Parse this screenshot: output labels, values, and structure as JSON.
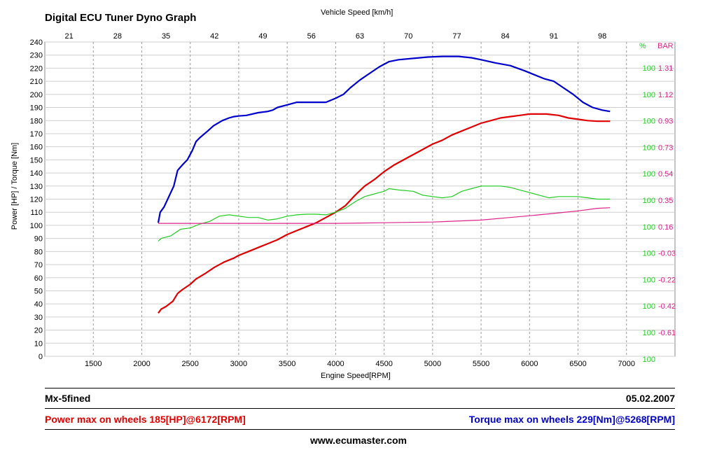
{
  "title": "Digital ECU Tuner Dyno Graph",
  "footer": {
    "car_name": "Mx-5fined",
    "date": "05.02.2007",
    "power_max": "Power max on wheels 185[HP]@6172[RPM]",
    "torque_max": "Torque max on wheels 229[Nm]@5268[RPM]",
    "website": "www.ecumaster.com"
  },
  "colors": {
    "power": "#e00000",
    "torque": "#0000cc",
    "pct": "#22cc22",
    "bar": "#dd2288"
  },
  "chart_data": {
    "type": "line",
    "grid": true,
    "x_axis": {
      "label": "Engine Speed[RPM]",
      "range": [
        1000,
        7500
      ],
      "ticks": [
        1500,
        2000,
        2500,
        3000,
        3500,
        4000,
        4500,
        5000,
        5500,
        6000,
        6500,
        7000
      ]
    },
    "top_axis": {
      "label": "Vehicle Speed [km/h]",
      "ticks": [
        "21",
        "28",
        "35",
        "42",
        "49",
        "56",
        "63",
        "70",
        "77",
        "84",
        "91",
        "98"
      ]
    },
    "y_axis": {
      "label": "Power [HP] / Torque [Nm]",
      "range": [
        0,
        240
      ],
      "ticks": [
        0,
        10,
        20,
        30,
        40,
        50,
        60,
        70,
        80,
        90,
        100,
        110,
        120,
        130,
        140,
        150,
        160,
        170,
        180,
        190,
        200,
        210,
        220,
        230,
        240
      ]
    },
    "right_axis": {
      "pct_unit": "%",
      "bar_unit": "BAR",
      "pct_ticks": [
        "100",
        "100",
        "100",
        "100",
        "100",
        "100",
        "100",
        "100",
        "100",
        "100",
        "100",
        "100"
      ],
      "bar_ticks": [
        "1.31",
        "1.12",
        "0.93",
        "0.73",
        "0.54",
        "0.35",
        "0.16",
        "-0.03",
        "-0.22",
        "-0.42",
        "-0.61"
      ]
    },
    "series": [
      {
        "key": "torque",
        "points": [
          [
            2170,
            102
          ],
          [
            2190,
            110
          ],
          [
            2230,
            114
          ],
          [
            2280,
            122
          ],
          [
            2330,
            130
          ],
          [
            2370,
            142
          ],
          [
            2430,
            147
          ],
          [
            2470,
            150
          ],
          [
            2520,
            157
          ],
          [
            2560,
            164
          ],
          [
            2600,
            167
          ],
          [
            2680,
            172
          ],
          [
            2740,
            176
          ],
          [
            2830,
            180
          ],
          [
            2900,
            182
          ],
          [
            2950,
            183
          ],
          [
            3000,
            183.5
          ],
          [
            3080,
            184
          ],
          [
            3200,
            186
          ],
          [
            3300,
            187
          ],
          [
            3350,
            188
          ],
          [
            3400,
            190
          ],
          [
            3500,
            192
          ],
          [
            3600,
            194
          ],
          [
            3700,
            194
          ],
          [
            3800,
            194
          ],
          [
            3900,
            194
          ],
          [
            4000,
            197
          ],
          [
            4080,
            200
          ],
          [
            4150,
            205
          ],
          [
            4250,
            211
          ],
          [
            4350,
            216
          ],
          [
            4450,
            221
          ],
          [
            4550,
            225
          ],
          [
            4650,
            226.5
          ],
          [
            4800,
            227.5
          ],
          [
            4950,
            228.5
          ],
          [
            5100,
            229
          ],
          [
            5268,
            229
          ],
          [
            5400,
            228
          ],
          [
            5500,
            226.5
          ],
          [
            5650,
            224
          ],
          [
            5800,
            222
          ],
          [
            5950,
            218
          ],
          [
            6050,
            215
          ],
          [
            6150,
            212
          ],
          [
            6250,
            210
          ],
          [
            6350,
            205
          ],
          [
            6450,
            200
          ],
          [
            6550,
            194
          ],
          [
            6650,
            190
          ],
          [
            6750,
            188
          ],
          [
            6830,
            187
          ]
        ]
      },
      {
        "key": "power",
        "points": [
          [
            2170,
            33
          ],
          [
            2200,
            36
          ],
          [
            2250,
            38
          ],
          [
            2320,
            42
          ],
          [
            2370,
            48
          ],
          [
            2420,
            51
          ],
          [
            2500,
            55
          ],
          [
            2560,
            59
          ],
          [
            2650,
            63
          ],
          [
            2750,
            68
          ],
          [
            2850,
            72
          ],
          [
            2950,
            75
          ],
          [
            3000,
            77
          ],
          [
            3100,
            80
          ],
          [
            3200,
            83
          ],
          [
            3300,
            86
          ],
          [
            3400,
            89
          ],
          [
            3500,
            93
          ],
          [
            3600,
            96
          ],
          [
            3700,
            99
          ],
          [
            3800,
            102
          ],
          [
            3900,
            106
          ],
          [
            4000,
            110
          ],
          [
            4100,
            115
          ],
          [
            4200,
            123
          ],
          [
            4300,
            130
          ],
          [
            4400,
            135
          ],
          [
            4500,
            141
          ],
          [
            4600,
            146
          ],
          [
            4700,
            150
          ],
          [
            4800,
            154
          ],
          [
            4900,
            158
          ],
          [
            5000,
            162
          ],
          [
            5100,
            165
          ],
          [
            5200,
            169
          ],
          [
            5300,
            172
          ],
          [
            5400,
            175
          ],
          [
            5500,
            178
          ],
          [
            5600,
            180
          ],
          [
            5700,
            182
          ],
          [
            5800,
            183
          ],
          [
            5900,
            184
          ],
          [
            6000,
            185
          ],
          [
            6172,
            185
          ],
          [
            6300,
            184
          ],
          [
            6400,
            182
          ],
          [
            6500,
            181
          ],
          [
            6600,
            180
          ],
          [
            6700,
            179.5
          ],
          [
            6830,
            179.5
          ]
        ]
      },
      {
        "key": "pct",
        "points": [
          [
            2170,
            88
          ],
          [
            2200,
            90
          ],
          [
            2300,
            92
          ],
          [
            2400,
            97
          ],
          [
            2500,
            98
          ],
          [
            2600,
            101
          ],
          [
            2700,
            103
          ],
          [
            2800,
            107
          ],
          [
            2900,
            108
          ],
          [
            3000,
            107
          ],
          [
            3100,
            106
          ],
          [
            3200,
            106
          ],
          [
            3300,
            104
          ],
          [
            3400,
            105
          ],
          [
            3500,
            107
          ],
          [
            3600,
            108
          ],
          [
            3700,
            108.5
          ],
          [
            3800,
            108.5
          ],
          [
            3900,
            108
          ],
          [
            4000,
            110
          ],
          [
            4100,
            113
          ],
          [
            4200,
            118
          ],
          [
            4300,
            122
          ],
          [
            4400,
            124
          ],
          [
            4450,
            125
          ],
          [
            4500,
            126
          ],
          [
            4550,
            128
          ],
          [
            4650,
            127
          ],
          [
            4800,
            126
          ],
          [
            4900,
            123
          ],
          [
            5000,
            122
          ],
          [
            5100,
            121
          ],
          [
            5200,
            122
          ],
          [
            5300,
            126
          ],
          [
            5400,
            128
          ],
          [
            5500,
            130
          ],
          [
            5600,
            130
          ],
          [
            5700,
            130
          ],
          [
            5800,
            129
          ],
          [
            5900,
            127
          ],
          [
            6000,
            125
          ],
          [
            6100,
            123
          ],
          [
            6200,
            121
          ],
          [
            6300,
            122
          ],
          [
            6400,
            122
          ],
          [
            6500,
            122
          ],
          [
            6600,
            121
          ],
          [
            6700,
            120
          ],
          [
            6830,
            120
          ]
        ]
      },
      {
        "key": "bar",
        "points": [
          [
            2170,
            101.5
          ],
          [
            2500,
            101.5
          ],
          [
            3000,
            101.5
          ],
          [
            3500,
            101.5
          ],
          [
            4000,
            101.5
          ],
          [
            4500,
            102
          ],
          [
            5000,
            102.5
          ],
          [
            5500,
            104
          ],
          [
            5800,
            106
          ],
          [
            6100,
            108
          ],
          [
            6300,
            109.5
          ],
          [
            6500,
            111
          ],
          [
            6700,
            113
          ],
          [
            6830,
            113.5
          ]
        ]
      }
    ]
  }
}
